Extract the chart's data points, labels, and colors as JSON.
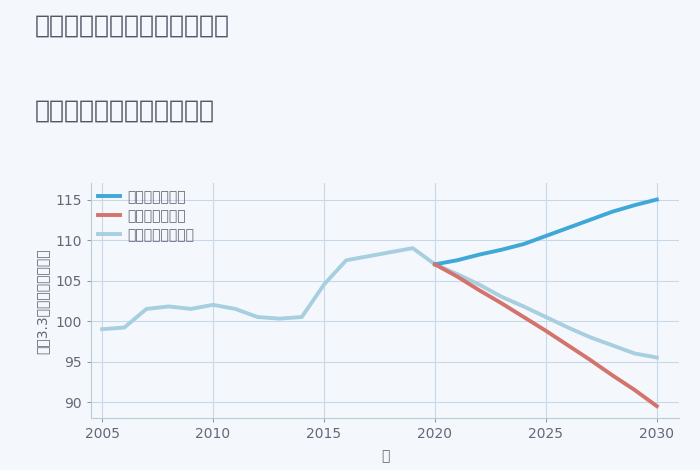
{
  "title_line1": "岐阜県加茂郡白川町水戸野の",
  "title_line2": "中古マンションの価格推移",
  "xlabel": "年",
  "ylabel": "平（3.3㎡）単価（万円）",
  "ylim": [
    88,
    117
  ],
  "xlim": [
    2004.5,
    2031
  ],
  "yticks": [
    90,
    95,
    100,
    105,
    110,
    115
  ],
  "xticks": [
    2005,
    2010,
    2015,
    2020,
    2025,
    2030
  ],
  "background_color": "#f4f8fc",
  "plot_bg_color": "#f4f8fc",
  "grid_color": "#c8d8ea",
  "normal_scenario": {
    "label": "ノーマルシナリオ",
    "color": "#a8cfe0",
    "years": [
      2005,
      2006,
      2007,
      2008,
      2009,
      2010,
      2011,
      2012,
      2013,
      2014,
      2015,
      2016,
      2017,
      2018,
      2019,
      2020,
      2021,
      2022,
      2023,
      2024,
      2025,
      2026,
      2027,
      2028,
      2029,
      2030
    ],
    "values": [
      99.0,
      99.2,
      101.5,
      101.8,
      101.5,
      102.0,
      101.5,
      100.5,
      100.3,
      100.5,
      104.5,
      107.5,
      108.0,
      108.5,
      109.0,
      107.0,
      105.8,
      104.5,
      103.0,
      101.8,
      100.5,
      99.2,
      98.0,
      97.0,
      96.0,
      95.5
    ]
  },
  "good_scenario": {
    "label": "グッドシナリオ",
    "color": "#3fa8d8",
    "years": [
      2020,
      2021,
      2022,
      2023,
      2024,
      2025,
      2026,
      2027,
      2028,
      2029,
      2030
    ],
    "values": [
      107.0,
      107.5,
      108.2,
      108.8,
      109.5,
      110.5,
      111.5,
      112.5,
      113.5,
      114.3,
      115.0
    ]
  },
  "bad_scenario": {
    "label": "バッドシナリオ",
    "color": "#d4736c",
    "years": [
      2020,
      2021,
      2022,
      2023,
      2024,
      2025,
      2026,
      2027,
      2028,
      2029,
      2030
    ],
    "values": [
      107.0,
      105.5,
      103.8,
      102.2,
      100.5,
      98.8,
      97.0,
      95.2,
      93.3,
      91.5,
      89.5
    ]
  },
  "title_color": "#555566",
  "axis_color": "#666677",
  "title_fontsize": 18,
  "axis_label_fontsize": 10,
  "tick_fontsize": 10,
  "legend_fontsize": 10,
  "line_width": 2.8
}
